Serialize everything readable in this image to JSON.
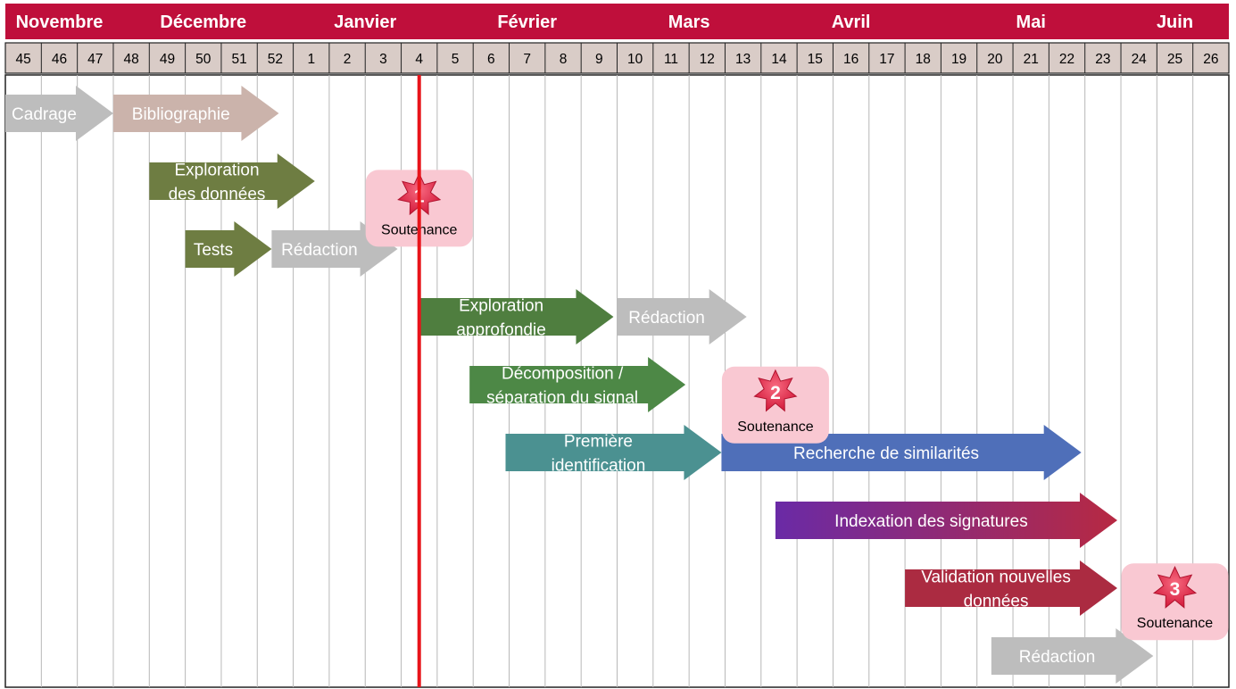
{
  "months": [
    {
      "label": "Novembre",
      "start": 0,
      "span": 3
    },
    {
      "label": "Décembre",
      "start": 3,
      "span": 5
    },
    {
      "label": "Janvier",
      "start": 8,
      "span": 4
    },
    {
      "label": "Février",
      "start": 12,
      "span": 5
    },
    {
      "label": "Mars",
      "start": 17,
      "span": 4
    },
    {
      "label": "Avril",
      "start": 21,
      "span": 5
    },
    {
      "label": "Mai",
      "start": 26,
      "span": 5
    },
    {
      "label": "Juin",
      "start": 31,
      "span": 3
    }
  ],
  "weeks": [
    "45",
    "46",
    "47",
    "48",
    "49",
    "50",
    "51",
    "52",
    "1",
    "2",
    "3",
    "4",
    "5",
    "6",
    "7",
    "8",
    "9",
    "10",
    "11",
    "12",
    "13",
    "14",
    "15",
    "16",
    "17",
    "18",
    "19",
    "20",
    "21",
    "22",
    "23",
    "24",
    "25",
    "26"
  ],
  "today_week_index": 11.5,
  "tasks": [
    {
      "lines": [
        "Cadrage"
      ],
      "color": "#bdbdbd",
      "start": 0,
      "end": 3,
      "row": 0
    },
    {
      "lines": [
        "Bibliographie"
      ],
      "color": "#cbb3ab",
      "start": 3,
      "end": 7.6,
      "row": 0
    },
    {
      "lines": [
        "Exploration",
        "des données"
      ],
      "color": "#6e7d42",
      "start": 4,
      "end": 8.6,
      "row": 1
    },
    {
      "lines": [
        "Tests"
      ],
      "color": "#6e7d42",
      "start": 5,
      "end": 7.4,
      "row": 2
    },
    {
      "lines": [
        "Rédaction"
      ],
      "color": "#bdbdbd",
      "start": 7.4,
      "end": 10.9,
      "row": 2
    },
    {
      "lines": [
        "Exploration",
        "approfondie"
      ],
      "color": "#4f7e3f",
      "start": 11.5,
      "end": 16.9,
      "row": 3
    },
    {
      "lines": [
        "Rédaction"
      ],
      "color": "#bdbdbd",
      "start": 17,
      "end": 20.6,
      "row": 3
    },
    {
      "lines": [
        "Décomposition /",
        "séparation du signal"
      ],
      "color": "#4d8846",
      "start": 12.9,
      "end": 18.9,
      "row": 4
    },
    {
      "lines": [
        "Première",
        "identification"
      ],
      "color": "#4b9191",
      "start": 13.9,
      "end": 19.9,
      "row": 5
    },
    {
      "lines": [
        "Recherche de similarités"
      ],
      "color": "#4f6fb9",
      "start": 19.9,
      "end": 29.9,
      "row": 5
    },
    {
      "lines": [
        "Indexation des signatures"
      ],
      "color": "gradient-violet-red",
      "start": 21.4,
      "end": 30.9,
      "row": 6
    },
    {
      "lines": [
        "Validation nouvelles",
        "données"
      ],
      "color": "#ab2b41",
      "start": 25,
      "end": 30.9,
      "row": 7
    },
    {
      "lines": [
        "Rédaction"
      ],
      "color": "#bdbdbd",
      "start": 27.4,
      "end": 31.9,
      "row": 8
    }
  ],
  "milestones": [
    {
      "number": "1",
      "label": "Soutenance",
      "week_center": 11.5,
      "row_center": 1.4
    },
    {
      "number": "2",
      "label": "Soutenance",
      "week_center": 21.4,
      "row_center": 4.3
    },
    {
      "number": "3",
      "label": "Soutenance",
      "week_center": 32.5,
      "row_center": 7.2
    }
  ],
  "colors": {
    "header": "#bf0f3b",
    "week_row": "#d9ccc7",
    "today_line": "#e8141b",
    "milestone_box": "#f9c8d2",
    "star": "#e02848"
  }
}
